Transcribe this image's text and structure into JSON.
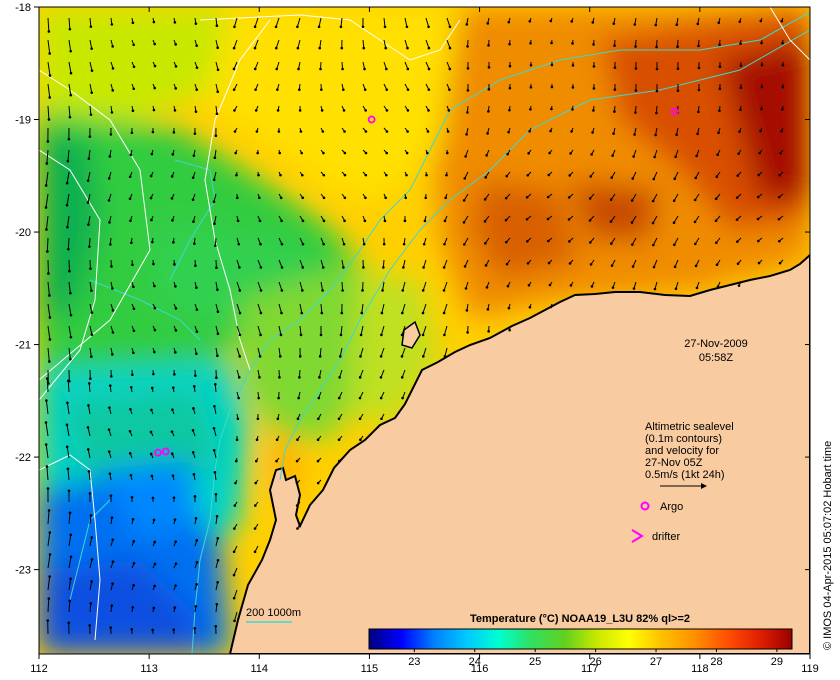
{
  "map": {
    "date": "27-Nov-2009",
    "time": "05:58Z",
    "longitude_ticks": [
      112,
      113,
      114,
      115,
      116,
      117,
      118,
      119
    ],
    "latitude_ticks": [
      -18,
      -19,
      -20,
      -21,
      -22,
      -23
    ],
    "longitude_range": [
      112,
      119
    ],
    "latitude_range": [
      -23.75,
      -18
    ],
    "colors": {
      "land": "#f9cba0",
      "coastline": "#000000",
      "sealevel_contour": "#ffffff",
      "bathymetry_contour": "#3fd7d0",
      "argo": "#ff00ff",
      "drifter": "#ff00ff"
    }
  },
  "legend": {
    "line1": "Altimetric sealevel",
    "line2": "(0.1m contours)",
    "line3": "and velocity for",
    "line4": "27-Nov 05Z",
    "line5": "0.5m/s (1kt 24h)",
    "argo_label": "Argo",
    "drifter_label": "drifter",
    "bathymetry_label": "200  1000m"
  },
  "colorbar": {
    "title": "Temperature (°C) NOAA19_L3U 82% ql>=2",
    "ticks": [
      23,
      24,
      25,
      26,
      27,
      28,
      29
    ],
    "range": [
      22.25,
      29.25
    ],
    "stops": [
      "#00007f",
      "#0000ff",
      "#0080ff",
      "#00c8ff",
      "#00ffd0",
      "#30e060",
      "#60d020",
      "#c8e800",
      "#ffff00",
      "#ffc000",
      "#ff9000",
      "#ff5000",
      "#e02000",
      "#9a0000"
    ]
  },
  "credit": "© IMOS 04-Apr-2015 05:07:02 Hobart time",
  "argo_floats": [
    {
      "lon": 115.02,
      "lat": -19.0
    },
    {
      "lon": 117.77,
      "lat": -18.93
    },
    {
      "lon": 113.08,
      "lat": -21.96
    },
    {
      "lon": 113.15,
      "lat": -21.95
    }
  ]
}
